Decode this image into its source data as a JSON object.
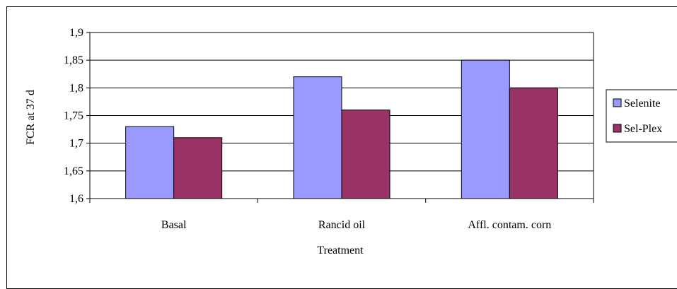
{
  "chart_data": {
    "type": "bar",
    "categories": [
      "Basal",
      "Rancid oil",
      "Affl. contam. corn"
    ],
    "series": [
      {
        "name": "Selenite",
        "values": [
          1.73,
          1.82,
          1.85
        ],
        "color": "#9999ff"
      },
      {
        "name": "Sel-Plex",
        "values": [
          1.71,
          1.76,
          1.8
        ],
        "color": "#993366"
      }
    ],
    "yticks": [
      "1,6",
      "1,65",
      "1,7",
      "1,75",
      "1,8",
      "1,85",
      "1,9"
    ],
    "xlabel": "Treatment",
    "ylabel": "FCR at 37 d",
    "ylim": [
      1.6,
      1.9
    ],
    "grid": true,
    "legend": "right"
  }
}
